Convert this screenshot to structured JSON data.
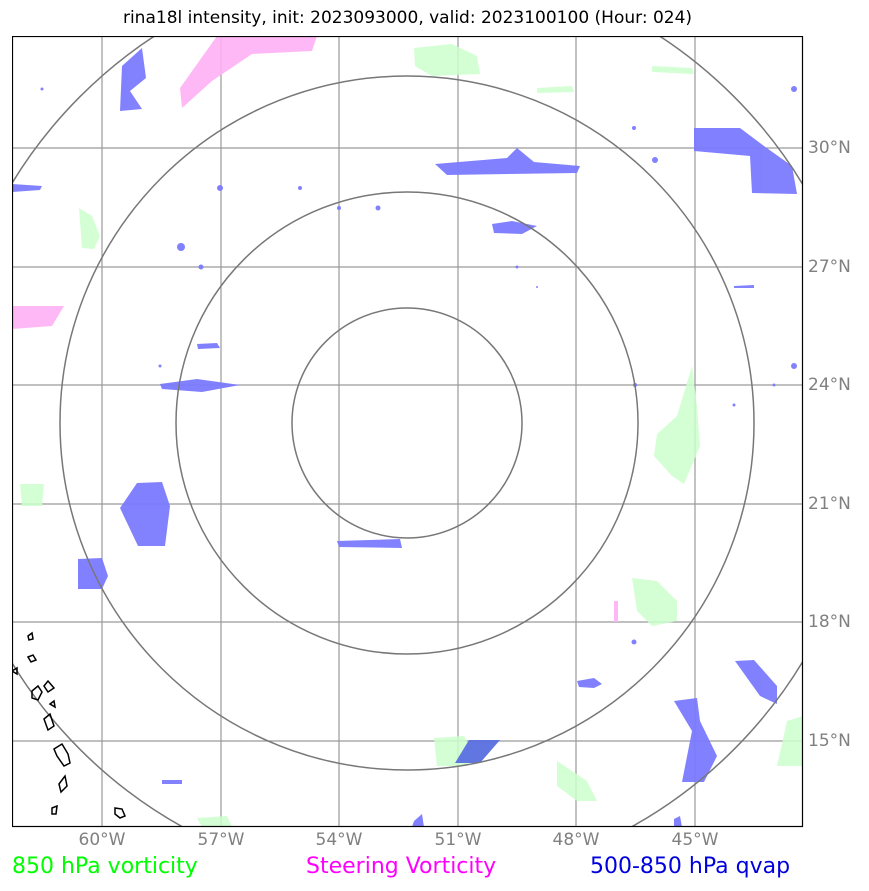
{
  "title": "rina18l intensity, init: 2023093000, valid: 2023100100 (Hour: 024)",
  "lat_labels": [
    "30°N",
    "27°N",
    "24°N",
    "21°N",
    "18°N",
    "15°N"
  ],
  "lon_labels": [
    "60°W",
    "57°W",
    "54°W",
    "51°W",
    "48°W",
    "45°W"
  ],
  "legend": {
    "vort850": {
      "label": "850 hPa vorticity",
      "color": "#00ff00"
    },
    "steering": {
      "label": "Steering Vorticity",
      "color": "#ff00ff"
    },
    "qvap": {
      "label": "500-850 hPa qvap",
      "color": "#0000dd"
    }
  },
  "colors": {
    "vort850_fill": "#ccffcc",
    "steering_fill": "#ffb0f5",
    "qvap_fill": "#7b7bff",
    "grid": "#9a9a9a",
    "range_rings": "#777777",
    "coastline": "#000000"
  },
  "range_rings_count": 4,
  "grid": true
}
